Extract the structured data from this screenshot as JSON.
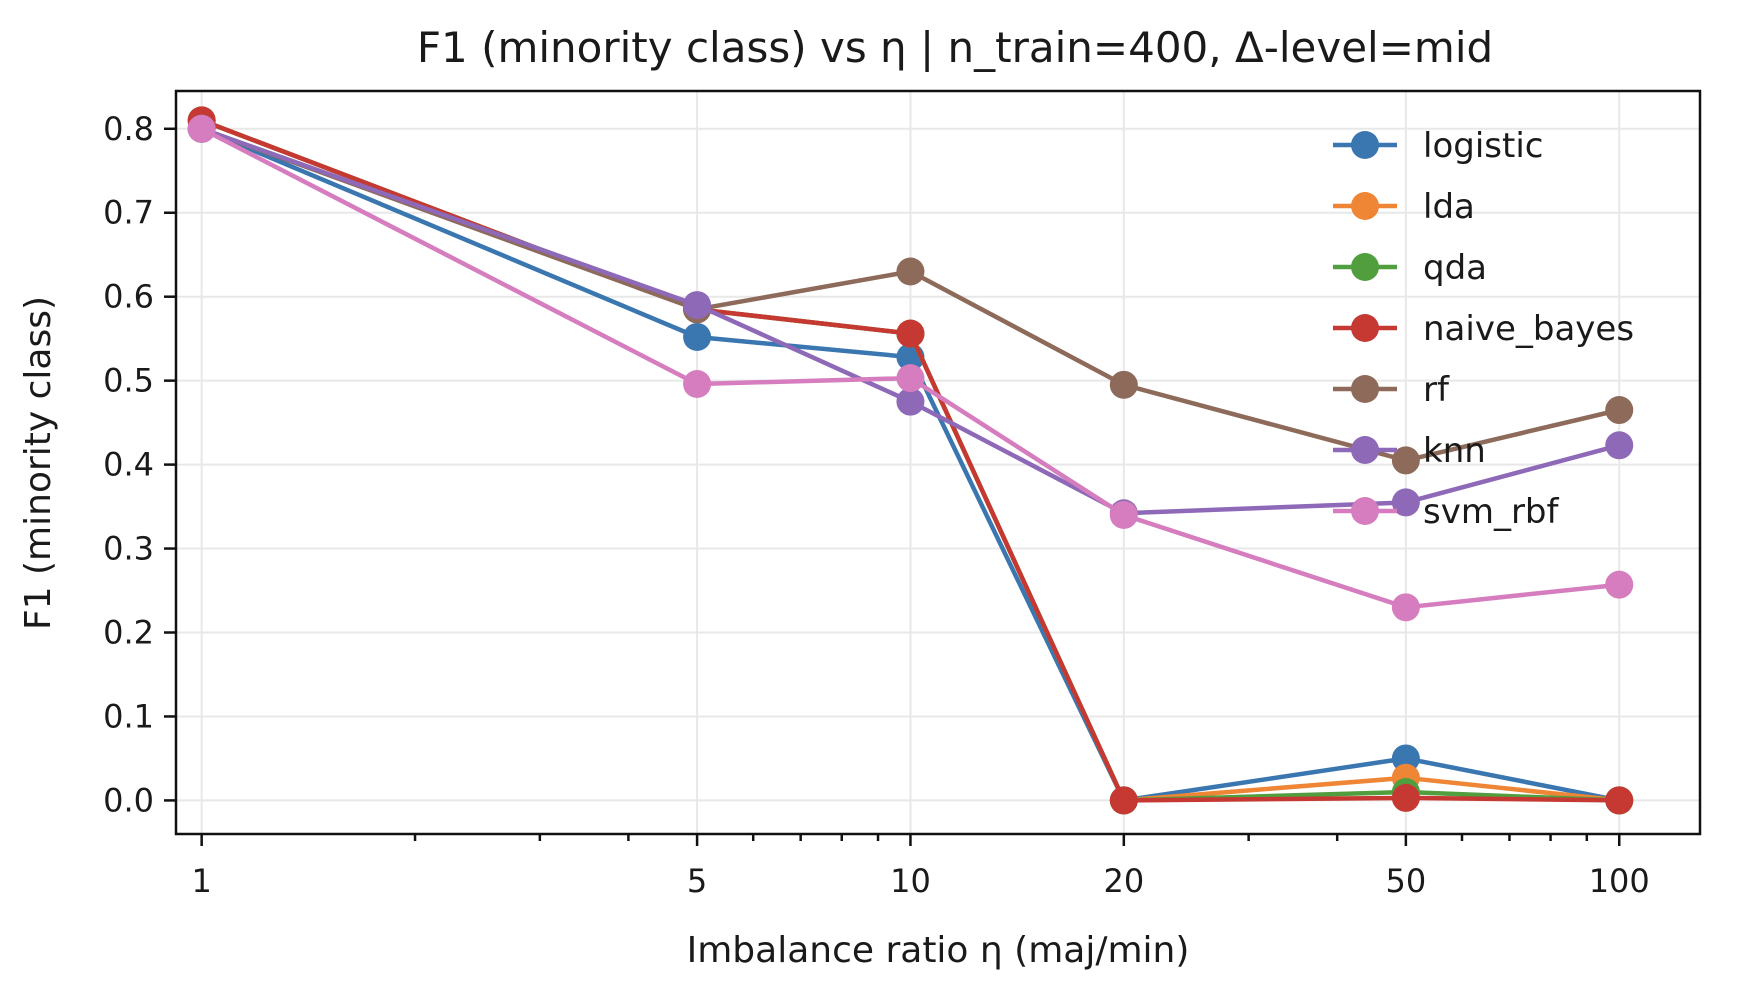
{
  "chart_data": {
    "type": "line",
    "title": "F1 (minority class) vs η  |  n_train=400, Δ-level=mid",
    "xlabel": "Imbalance ratio η (maj/min)",
    "ylabel": "F1 (minority class)",
    "xscale": "log",
    "x": [
      1,
      5,
      10,
      20,
      50,
      100
    ],
    "x_tick_labels": [
      "1",
      "5",
      "10",
      "20",
      "50",
      "100"
    ],
    "xlim": [
      0.92,
      130
    ],
    "ylim": [
      -0.04,
      0.845
    ],
    "y_ticks": [
      0.0,
      0.1,
      0.2,
      0.3,
      0.4,
      0.5,
      0.6,
      0.7,
      0.8
    ],
    "y_tick_labels": [
      "0.0",
      "0.1",
      "0.2",
      "0.3",
      "0.4",
      "0.5",
      "0.6",
      "0.7",
      "0.8"
    ],
    "grid": true,
    "legend_position": "top-right",
    "series": [
      {
        "name": "logistic",
        "color": "#3a76af",
        "values": [
          0.8,
          0.552,
          0.528,
          0.0,
          0.05,
          0.0
        ]
      },
      {
        "name": "lda",
        "color": "#ef8636",
        "values": [
          0.81,
          0.585,
          0.556,
          0.0,
          0.027,
          0.0
        ]
      },
      {
        "name": "qda",
        "color": "#519e3e",
        "values": [
          0.81,
          0.585,
          0.556,
          0.0,
          0.01,
          0.0
        ]
      },
      {
        "name": "naive_bayes",
        "color": "#c53932",
        "values": [
          0.81,
          0.585,
          0.556,
          0.0,
          0.003,
          0.0
        ]
      },
      {
        "name": "rf",
        "color": "#8d6a5a",
        "values": [
          0.8,
          0.585,
          0.63,
          0.495,
          0.405,
          0.465
        ]
      },
      {
        "name": "knn",
        "color": "#8d69b8",
        "values": [
          0.8,
          0.59,
          0.475,
          0.342,
          0.355,
          0.423
        ]
      },
      {
        "name": "svm_rbf",
        "color": "#d57dbf",
        "values": [
          0.8,
          0.496,
          0.503,
          0.34,
          0.23,
          0.257
        ]
      }
    ]
  }
}
